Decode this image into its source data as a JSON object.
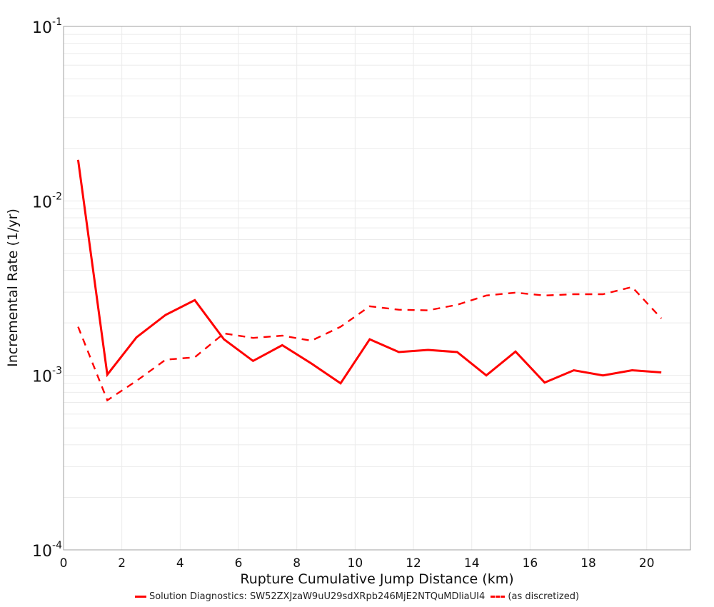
{
  "chart_data": {
    "type": "line",
    "title": "",
    "xlabel": "Rupture Cumulative Jump Distance (km)",
    "ylabel": "Incremental Rate (1/yr)",
    "xlim": [
      0,
      21.5
    ],
    "ylim": [
      0.0001,
      0.1
    ],
    "yscale": "log",
    "grid": true,
    "legend_position": "bottom",
    "x_ticks": [
      0,
      2,
      4,
      6,
      8,
      10,
      12,
      14,
      16,
      18,
      20
    ],
    "y_ticks": [
      "10^-4",
      "10^-3",
      "10^-2",
      "10^-1"
    ],
    "x": [
      0.5,
      1.5,
      2.5,
      3.5,
      4.5,
      5.5,
      6.5,
      7.5,
      8.5,
      9.5,
      10.5,
      11.5,
      12.5,
      13.5,
      14.5,
      15.5,
      16.5,
      17.5,
      18.5,
      19.5,
      20.5
    ],
    "series": [
      {
        "name": "Solution Diagnostics: SW52ZXJzaW9uU29sdXRpb246MjE2NTQuMDliaUI4",
        "style": "solid",
        "color": "#ff0000",
        "values": [
          0.0172,
          0.00101,
          0.00165,
          0.00222,
          0.0027,
          0.00161,
          0.00121,
          0.00149,
          0.00117,
          0.0009,
          0.00161,
          0.00136,
          0.0014,
          0.00136,
          0.001,
          0.00137,
          0.00091,
          0.00107,
          0.001,
          0.00107,
          0.00104
        ]
      },
      {
        "name": "(as discretized)",
        "style": "dashed",
        "color": "#ff0000",
        "values": [
          0.0019,
          0.00072,
          0.00093,
          0.00123,
          0.00127,
          0.00174,
          0.00164,
          0.00169,
          0.00158,
          0.0019,
          0.00249,
          0.00238,
          0.00236,
          0.00254,
          0.00287,
          0.00298,
          0.00287,
          0.00292,
          0.00292,
          0.00321,
          0.00212
        ]
      }
    ]
  },
  "legend": {
    "items": [
      {
        "label": "Solution Diagnostics: SW52ZXJzaW9uU29sdXRpb246MjE2NTQuMDliaUI4",
        "style": "solid"
      },
      {
        "label": "(as discretized)",
        "style": "dashed"
      }
    ]
  }
}
